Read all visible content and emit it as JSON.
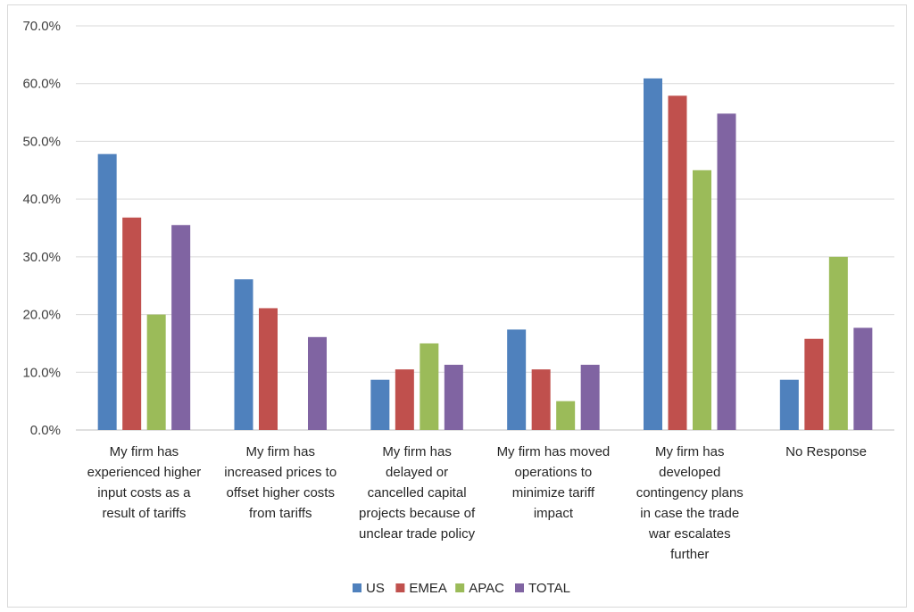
{
  "chart_data": {
    "type": "bar",
    "categories": [
      "My firm has experienced higher input costs as a result of tariffs",
      "My firm has increased prices to offset higher costs from tariffs",
      "My firm has delayed or cancelled capital projects because of unclear trade policy",
      "My firm has moved operations to minimize tariff impact",
      "My firm has developed contingency plans in case the trade war escalates further",
      "No Response"
    ],
    "category_lines": [
      [
        "My firm has",
        "experienced higher",
        "input costs as a",
        "result of tariffs"
      ],
      [
        "My firm has",
        "increased prices to",
        "offset higher costs",
        "from tariffs"
      ],
      [
        "My firm has",
        "delayed or",
        "cancelled capital",
        "projects because of",
        "unclear trade policy"
      ],
      [
        "My firm has moved",
        "operations to",
        "minimize tariff",
        "impact"
      ],
      [
        "My firm has",
        "developed",
        "contingency plans",
        "in case the trade",
        "war escalates",
        "further"
      ],
      [
        "No Response"
      ]
    ],
    "series": [
      {
        "name": "US",
        "color": "#4f81bd",
        "values": [
          47.8,
          26.1,
          8.7,
          17.4,
          60.9,
          8.7
        ]
      },
      {
        "name": "EMEA",
        "color": "#c0504d",
        "values": [
          36.8,
          21.1,
          10.5,
          10.5,
          57.9,
          15.8
        ]
      },
      {
        "name": "APAC",
        "color": "#9bbb59",
        "values": [
          20.0,
          0.0,
          15.0,
          5.0,
          45.0,
          30.0
        ]
      },
      {
        "name": "TOTAL",
        "color": "#8064a2",
        "values": [
          35.5,
          16.1,
          11.3,
          11.3,
          54.8,
          17.7
        ]
      }
    ],
    "yticks": [
      "0.0%",
      "10.0%",
      "20.0%",
      "30.0%",
      "40.0%",
      "50.0%",
      "60.0%",
      "70.0%"
    ],
    "ylim": [
      0,
      70
    ],
    "grid": true,
    "legend_position": "bottom",
    "title": "",
    "xlabel": "",
    "ylabel": ""
  }
}
